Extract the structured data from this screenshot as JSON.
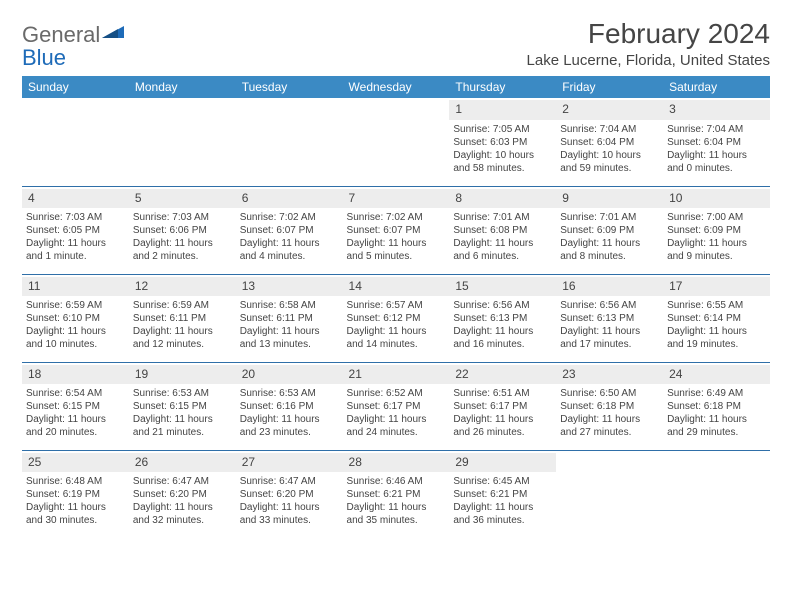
{
  "brand": {
    "text_gray": "General",
    "text_blue": "Blue",
    "gray_color": "#6a6a6a",
    "blue_color": "#1e6bb8"
  },
  "title": "February 2024",
  "location": "Lake Lucerne, Florida, United States",
  "colors": {
    "header_bg": "#3b8ac4",
    "row_border": "#2f6fa8",
    "daynum_bg": "#ededed"
  },
  "day_headers": [
    "Sunday",
    "Monday",
    "Tuesday",
    "Wednesday",
    "Thursday",
    "Friday",
    "Saturday"
  ],
  "weeks": [
    [
      {
        "empty": true
      },
      {
        "empty": true
      },
      {
        "empty": true
      },
      {
        "empty": true
      },
      {
        "num": "1",
        "sunrise": "Sunrise: 7:05 AM",
        "sunset": "Sunset: 6:03 PM",
        "day1": "Daylight: 10 hours",
        "day2": "and 58 minutes."
      },
      {
        "num": "2",
        "sunrise": "Sunrise: 7:04 AM",
        "sunset": "Sunset: 6:04 PM",
        "day1": "Daylight: 10 hours",
        "day2": "and 59 minutes."
      },
      {
        "num": "3",
        "sunrise": "Sunrise: 7:04 AM",
        "sunset": "Sunset: 6:04 PM",
        "day1": "Daylight: 11 hours",
        "day2": "and 0 minutes."
      }
    ],
    [
      {
        "num": "4",
        "sunrise": "Sunrise: 7:03 AM",
        "sunset": "Sunset: 6:05 PM",
        "day1": "Daylight: 11 hours",
        "day2": "and 1 minute."
      },
      {
        "num": "5",
        "sunrise": "Sunrise: 7:03 AM",
        "sunset": "Sunset: 6:06 PM",
        "day1": "Daylight: 11 hours",
        "day2": "and 2 minutes."
      },
      {
        "num": "6",
        "sunrise": "Sunrise: 7:02 AM",
        "sunset": "Sunset: 6:07 PM",
        "day1": "Daylight: 11 hours",
        "day2": "and 4 minutes."
      },
      {
        "num": "7",
        "sunrise": "Sunrise: 7:02 AM",
        "sunset": "Sunset: 6:07 PM",
        "day1": "Daylight: 11 hours",
        "day2": "and 5 minutes."
      },
      {
        "num": "8",
        "sunrise": "Sunrise: 7:01 AM",
        "sunset": "Sunset: 6:08 PM",
        "day1": "Daylight: 11 hours",
        "day2": "and 6 minutes."
      },
      {
        "num": "9",
        "sunrise": "Sunrise: 7:01 AM",
        "sunset": "Sunset: 6:09 PM",
        "day1": "Daylight: 11 hours",
        "day2": "and 8 minutes."
      },
      {
        "num": "10",
        "sunrise": "Sunrise: 7:00 AM",
        "sunset": "Sunset: 6:09 PM",
        "day1": "Daylight: 11 hours",
        "day2": "and 9 minutes."
      }
    ],
    [
      {
        "num": "11",
        "sunrise": "Sunrise: 6:59 AM",
        "sunset": "Sunset: 6:10 PM",
        "day1": "Daylight: 11 hours",
        "day2": "and 10 minutes."
      },
      {
        "num": "12",
        "sunrise": "Sunrise: 6:59 AM",
        "sunset": "Sunset: 6:11 PM",
        "day1": "Daylight: 11 hours",
        "day2": "and 12 minutes."
      },
      {
        "num": "13",
        "sunrise": "Sunrise: 6:58 AM",
        "sunset": "Sunset: 6:11 PM",
        "day1": "Daylight: 11 hours",
        "day2": "and 13 minutes."
      },
      {
        "num": "14",
        "sunrise": "Sunrise: 6:57 AM",
        "sunset": "Sunset: 6:12 PM",
        "day1": "Daylight: 11 hours",
        "day2": "and 14 minutes."
      },
      {
        "num": "15",
        "sunrise": "Sunrise: 6:56 AM",
        "sunset": "Sunset: 6:13 PM",
        "day1": "Daylight: 11 hours",
        "day2": "and 16 minutes."
      },
      {
        "num": "16",
        "sunrise": "Sunrise: 6:56 AM",
        "sunset": "Sunset: 6:13 PM",
        "day1": "Daylight: 11 hours",
        "day2": "and 17 minutes."
      },
      {
        "num": "17",
        "sunrise": "Sunrise: 6:55 AM",
        "sunset": "Sunset: 6:14 PM",
        "day1": "Daylight: 11 hours",
        "day2": "and 19 minutes."
      }
    ],
    [
      {
        "num": "18",
        "sunrise": "Sunrise: 6:54 AM",
        "sunset": "Sunset: 6:15 PM",
        "day1": "Daylight: 11 hours",
        "day2": "and 20 minutes."
      },
      {
        "num": "19",
        "sunrise": "Sunrise: 6:53 AM",
        "sunset": "Sunset: 6:15 PM",
        "day1": "Daylight: 11 hours",
        "day2": "and 21 minutes."
      },
      {
        "num": "20",
        "sunrise": "Sunrise: 6:53 AM",
        "sunset": "Sunset: 6:16 PM",
        "day1": "Daylight: 11 hours",
        "day2": "and 23 minutes."
      },
      {
        "num": "21",
        "sunrise": "Sunrise: 6:52 AM",
        "sunset": "Sunset: 6:17 PM",
        "day1": "Daylight: 11 hours",
        "day2": "and 24 minutes."
      },
      {
        "num": "22",
        "sunrise": "Sunrise: 6:51 AM",
        "sunset": "Sunset: 6:17 PM",
        "day1": "Daylight: 11 hours",
        "day2": "and 26 minutes."
      },
      {
        "num": "23",
        "sunrise": "Sunrise: 6:50 AM",
        "sunset": "Sunset: 6:18 PM",
        "day1": "Daylight: 11 hours",
        "day2": "and 27 minutes."
      },
      {
        "num": "24",
        "sunrise": "Sunrise: 6:49 AM",
        "sunset": "Sunset: 6:18 PM",
        "day1": "Daylight: 11 hours",
        "day2": "and 29 minutes."
      }
    ],
    [
      {
        "num": "25",
        "sunrise": "Sunrise: 6:48 AM",
        "sunset": "Sunset: 6:19 PM",
        "day1": "Daylight: 11 hours",
        "day2": "and 30 minutes."
      },
      {
        "num": "26",
        "sunrise": "Sunrise: 6:47 AM",
        "sunset": "Sunset: 6:20 PM",
        "day1": "Daylight: 11 hours",
        "day2": "and 32 minutes."
      },
      {
        "num": "27",
        "sunrise": "Sunrise: 6:47 AM",
        "sunset": "Sunset: 6:20 PM",
        "day1": "Daylight: 11 hours",
        "day2": "and 33 minutes."
      },
      {
        "num": "28",
        "sunrise": "Sunrise: 6:46 AM",
        "sunset": "Sunset: 6:21 PM",
        "day1": "Daylight: 11 hours",
        "day2": "and 35 minutes."
      },
      {
        "num": "29",
        "sunrise": "Sunrise: 6:45 AM",
        "sunset": "Sunset: 6:21 PM",
        "day1": "Daylight: 11 hours",
        "day2": "and 36 minutes."
      },
      {
        "empty": true
      },
      {
        "empty": true
      }
    ]
  ]
}
